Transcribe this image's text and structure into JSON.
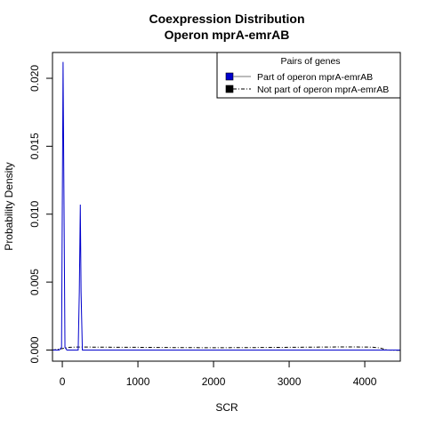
{
  "chart_data": {
    "type": "line",
    "title": "Coexpression Distribution",
    "subtitle": "Operon mprA-emrAB",
    "xlabel": "SCR",
    "ylabel": "Probability Density",
    "xlim": [
      -130,
      4470
    ],
    "ylim": [
      -0.00082,
      0.0219
    ],
    "x_ticks": [
      0,
      1000,
      2000,
      3000,
      4000
    ],
    "x_tick_labels": [
      "0",
      "1000",
      "2000",
      "3000",
      "4000"
    ],
    "y_ticks": [
      0.0,
      0.005,
      0.01,
      0.015,
      0.02
    ],
    "y_tick_labels": [
      "0.000",
      "0.005",
      "0.010",
      "0.015",
      "0.020"
    ],
    "grid": false,
    "legend": {
      "title": "Pairs of genes",
      "position": "top-right",
      "entries": [
        "Part of operon mprA-emrAB",
        "Not part of operon mprA-emrAB"
      ]
    },
    "series": [
      {
        "name": "Part of operon mprA-emrAB",
        "color": "#0000cc",
        "style": "solid",
        "x": [
          -130,
          -40,
          -10,
          10,
          35,
          60,
          210,
          225,
          238,
          248,
          265,
          300,
          4470
        ],
        "y": [
          0.0,
          0.0,
          0.0002,
          0.0212,
          0.0002,
          0.0,
          0.0,
          0.0043,
          0.0107,
          0.0043,
          0.0,
          0.0,
          0.0
        ]
      },
      {
        "name": "Not part of operon mprA-emrAB",
        "color": "#000000",
        "style": "dashed",
        "x": [
          -130,
          -60,
          -10,
          40,
          100,
          200,
          300,
          500,
          1000,
          1500,
          2000,
          2500,
          3000,
          3500,
          3800,
          4000,
          4100,
          4200,
          4300,
          4400,
          4470
        ],
        "y": [
          0.0,
          5e-05,
          0.0001,
          0.00015,
          0.0002,
          0.00022,
          0.00022,
          0.00021,
          0.0002,
          0.00018,
          0.00017,
          0.00018,
          0.0002,
          0.00022,
          0.00023,
          0.00022,
          0.00021,
          0.00015,
          0.0,
          -2e-05,
          -2e-05
        ]
      }
    ]
  }
}
